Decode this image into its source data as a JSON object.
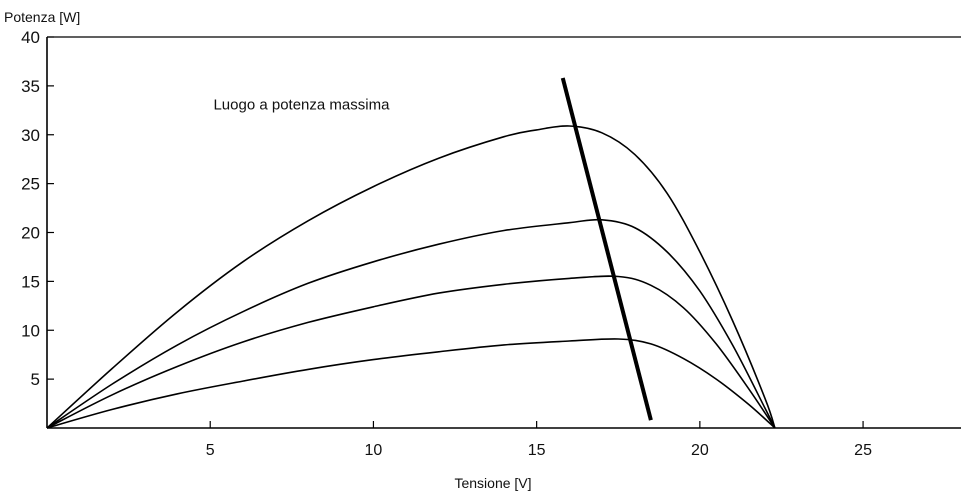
{
  "chart_data": {
    "type": "line",
    "title": "",
    "xlabel": "Tensione [V]",
    "ylabel": "Potenza [W]",
    "xlim": [
      0,
      28
    ],
    "ylim": [
      0,
      40
    ],
    "xticks": [
      5,
      10,
      15,
      20,
      25
    ],
    "yticks": [
      5,
      10,
      15,
      20,
      25,
      30,
      35,
      40
    ],
    "grid": false,
    "colors": {
      "curve": "#000000",
      "mpp_line": "#000000",
      "axes": "#000000"
    },
    "series": [
      {
        "x": [
          0,
          2,
          4,
          6,
          8,
          10,
          12,
          14,
          15,
          16,
          17,
          18,
          19,
          20,
          21,
          22,
          22.3
        ],
        "y": [
          0,
          6.1,
          11.9,
          17.0,
          21.2,
          24.7,
          27.6,
          29.8,
          30.5,
          30.9,
          30.2,
          28.0,
          24.0,
          18.0,
          11.0,
          3.0,
          0
        ]
      },
      {
        "x": [
          0,
          2,
          4,
          6,
          8,
          10,
          12,
          14,
          16,
          17,
          18,
          19,
          20,
          21,
          22,
          22.3
        ],
        "y": [
          0,
          4.5,
          8.5,
          11.9,
          14.8,
          17.0,
          18.8,
          20.2,
          21.0,
          21.3,
          20.5,
          18.0,
          14.0,
          8.5,
          2.0,
          0
        ]
      },
      {
        "x": [
          0,
          2,
          4,
          6,
          8,
          10,
          12,
          14,
          16,
          17.5,
          18.5,
          19.5,
          20.5,
          21.5,
          22.3
        ],
        "y": [
          0,
          3.4,
          6.3,
          8.8,
          10.8,
          12.4,
          13.8,
          14.7,
          15.3,
          15.5,
          14.6,
          12.3,
          8.6,
          4.0,
          0
        ]
      },
      {
        "x": [
          0,
          2,
          4,
          6,
          8,
          10,
          12,
          14,
          16,
          17.5,
          18.5,
          19.5,
          20.5,
          21.5,
          22.3
        ],
        "y": [
          0,
          1.9,
          3.5,
          4.8,
          6.0,
          7.0,
          7.8,
          8.5,
          8.9,
          9.1,
          8.6,
          7.1,
          5.0,
          2.4,
          0
        ]
      }
    ],
    "mpp_line": {
      "x": [
        15.8,
        18.5
      ],
      "y": [
        35.8,
        0.8
      ]
    },
    "annotation": {
      "text": "Luogo a potenza massima",
      "x": 5.1,
      "y": 32.6
    }
  }
}
